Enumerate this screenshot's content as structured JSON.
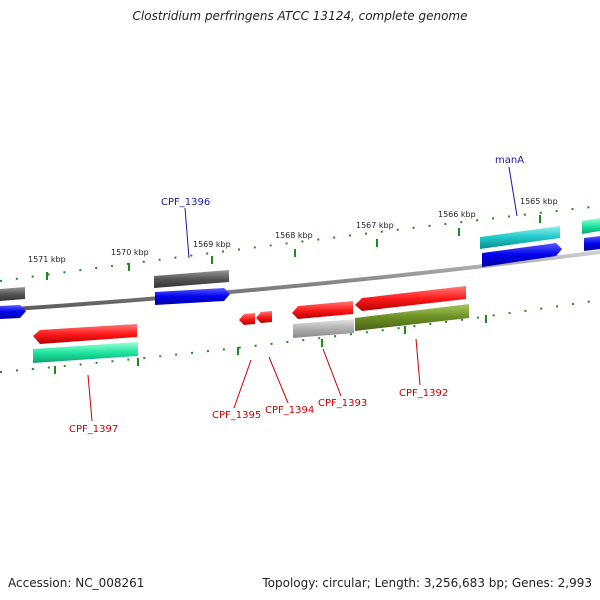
{
  "title": "Clostridium perfringens ATCC 13124, complete genome",
  "footer": {
    "accession": "Accession: NC_008261",
    "summary": "Topology: circular; Length: 3,256,683 bp; Genes: 2,993"
  },
  "ticks": {
    "kbp_1571": "1571 kbp",
    "kbp_1570": "1570 kbp",
    "kbp_1569": "1569 kbp",
    "kbp_1568": "1568 kbp",
    "kbp_1567": "1567 kbp",
    "kbp_1566": "1566 kbp",
    "kbp_1565": "1565 kbp"
  },
  "genes": {
    "manA": "manA",
    "cpf_1396": "CPF_1396",
    "cpf_1397": "CPF_1397",
    "cpf_1395": "CPF_1395",
    "cpf_1394": "CPF_1394",
    "cpf_1393": "CPF_1393",
    "cpf_1392": "CPF_1392"
  },
  "colors": {
    "plus_label": "#1a1aa6",
    "minus_label": "#cc0000",
    "backbone": "#8a8a8a",
    "tick": "#1f8a1f",
    "red": "#ff1a1a",
    "blue": "#0000ee",
    "teal": "#1ec8c8",
    "green": "#1ee6a0",
    "olive": "#6b8e23",
    "gray": "#555555",
    "light_gray": "#b0b0b0"
  }
}
